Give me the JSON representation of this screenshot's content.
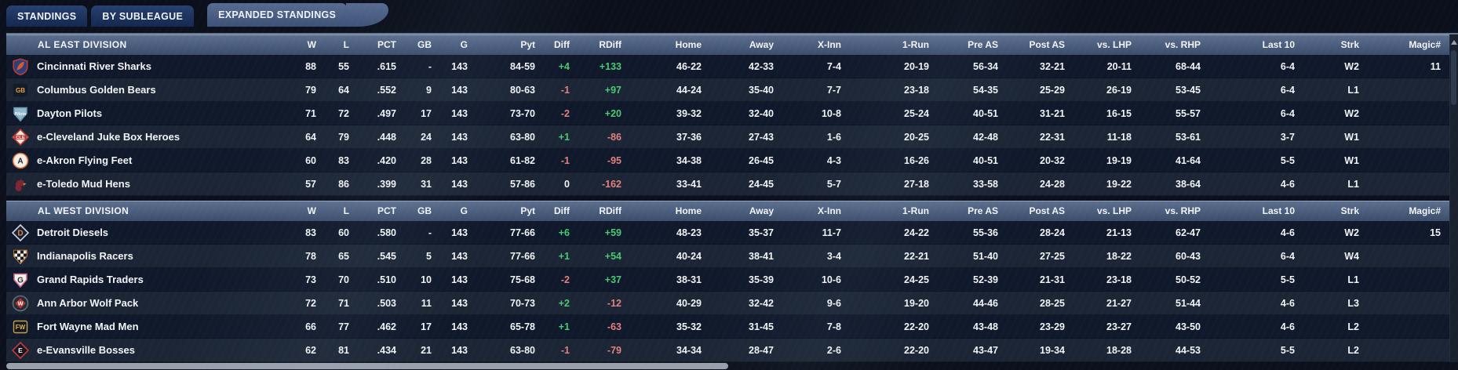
{
  "tabs": [
    {
      "label": "STANDINGS",
      "active": false
    },
    {
      "label": "BY SUBLEAGUE",
      "active": false
    },
    {
      "label": "EXPANDED STANDINGS",
      "active": true
    }
  ],
  "colors": {
    "positive": "#4ac973",
    "negative": "#e2817f",
    "division_header": "#4c5f80",
    "tab_active": "#4a5e84",
    "tab_inactive": "#1d3560",
    "row_dark": "#10192b",
    "row_light": "#1b2535"
  },
  "columns": [
    {
      "key": "w",
      "label": "W"
    },
    {
      "key": "l",
      "label": "L"
    },
    {
      "key": "pct",
      "label": "PCT"
    },
    {
      "key": "gb",
      "label": "GB"
    },
    {
      "key": "g",
      "label": "G"
    },
    {
      "key": "pyt",
      "label": "Pyt"
    },
    {
      "key": "diff",
      "label": "Diff"
    },
    {
      "key": "rdiff",
      "label": "RDiff"
    },
    {
      "key": "home",
      "label": "Home"
    },
    {
      "key": "away",
      "label": "Away"
    },
    {
      "key": "xinn",
      "label": "X-Inn"
    },
    {
      "key": "run1",
      "label": "1-Run"
    },
    {
      "key": "preas",
      "label": "Pre AS"
    },
    {
      "key": "postas",
      "label": "Post AS"
    },
    {
      "key": "vslhp",
      "label": "vs. LHP"
    },
    {
      "key": "vsrhp",
      "label": "vs. RHP"
    },
    {
      "key": "last10",
      "label": "Last 10"
    },
    {
      "key": "strk",
      "label": "Strk"
    },
    {
      "key": "magic",
      "label": "Magic#"
    }
  ],
  "divisions": [
    {
      "name": "AL EAST DIVISION",
      "teams": [
        {
          "name": "Cincinnati River Sharks",
          "logo": {
            "shape": "shield",
            "bg": "#2e3e7d",
            "border": "#b73b35",
            "accent": "#d95a2e"
          },
          "stats": {
            "w": "88",
            "l": "55",
            "pct": ".615",
            "gb": "-",
            "g": "143",
            "pyt": "84-59",
            "diff": "+4",
            "rdiff": "+133",
            "home": "46-22",
            "away": "42-33",
            "xinn": "7-4",
            "run1": "20-19",
            "preas": "56-34",
            "postas": "32-21",
            "vslhp": "20-11",
            "vsrhp": "68-44",
            "last10": "6-4",
            "strk": "W2",
            "magic": "11"
          }
        },
        {
          "name": "Columbus Golden Bears",
          "logo": {
            "shape": "square",
            "bg": "#131a28",
            "border": "#131a28",
            "label": "GB",
            "labelColor": "#e4a13c"
          },
          "stats": {
            "w": "79",
            "l": "64",
            "pct": ".552",
            "gb": "9",
            "g": "143",
            "pyt": "80-63",
            "diff": "-1",
            "rdiff": "+97",
            "home": "44-24",
            "away": "35-40",
            "xinn": "7-7",
            "run1": "23-18",
            "preas": "54-35",
            "postas": "25-29",
            "vslhp": "26-19",
            "vsrhp": "53-45",
            "last10": "6-4",
            "strk": "L1",
            "magic": ""
          }
        },
        {
          "name": "Dayton Pilots",
          "logo": {
            "shape": "plate",
            "bg": "#8fb8cc",
            "border": "#6d98ad",
            "label": "Pilots",
            "labelColor": "#f5f8fa",
            "italic": true
          },
          "stats": {
            "w": "71",
            "l": "72",
            "pct": ".497",
            "gb": "17",
            "g": "143",
            "pyt": "73-70",
            "diff": "-2",
            "rdiff": "+20",
            "home": "39-32",
            "away": "32-40",
            "xinn": "10-8",
            "run1": "25-24",
            "preas": "40-51",
            "postas": "31-21",
            "vslhp": "16-15",
            "vsrhp": "55-57",
            "last10": "6-4",
            "strk": "W2",
            "magic": ""
          }
        },
        {
          "name": "e-Cleveland Juke Box Heroes",
          "logo": {
            "shape": "diamond",
            "bg": "#efe6da",
            "border": "#b5342c",
            "label": "CLE",
            "labelColor": "#ffffff",
            "labelBg": "#b5342c"
          },
          "stats": {
            "w": "64",
            "l": "79",
            "pct": ".448",
            "gb": "24",
            "g": "143",
            "pyt": "63-80",
            "diff": "+1",
            "rdiff": "-86",
            "home": "37-36",
            "away": "27-43",
            "xinn": "1-6",
            "run1": "20-25",
            "preas": "42-48",
            "postas": "22-31",
            "vslhp": "11-18",
            "vsrhp": "53-61",
            "last10": "3-7",
            "strk": "W1",
            "magic": ""
          }
        },
        {
          "name": "e-Akron  Flying Feet",
          "logo": {
            "shape": "circle",
            "bg": "#f4efe6",
            "border": "#cf6b2f",
            "label": "A",
            "labelColor": "#20242b"
          },
          "stats": {
            "w": "60",
            "l": "83",
            "pct": ".420",
            "gb": "28",
            "g": "143",
            "pyt": "61-82",
            "diff": "-1",
            "rdiff": "-95",
            "home": "34-38",
            "away": "26-45",
            "xinn": "4-3",
            "run1": "16-26",
            "preas": "40-51",
            "postas": "20-32",
            "vslhp": "19-19",
            "vsrhp": "41-64",
            "last10": "5-5",
            "strk": "W1",
            "magic": ""
          }
        },
        {
          "name": "e-Toledo  Mud Hens",
          "logo": {
            "shape": "rooster",
            "bg": "#7e2634",
            "border": "#c79b3b"
          },
          "stats": {
            "w": "57",
            "l": "86",
            "pct": ".399",
            "gb": "31",
            "g": "143",
            "pyt": "57-86",
            "diff": "0",
            "rdiff": "-162",
            "home": "33-41",
            "away": "24-45",
            "xinn": "5-7",
            "run1": "27-18",
            "preas": "33-58",
            "postas": "24-28",
            "vslhp": "19-22",
            "vsrhp": "38-64",
            "last10": "4-6",
            "strk": "L1",
            "magic": ""
          }
        }
      ]
    },
    {
      "name": "AL WEST DIVISION",
      "teams": [
        {
          "name": "Detroit Diesels",
          "logo": {
            "shape": "diamond",
            "bg": "#152138",
            "border": "#cdd3dc",
            "label": "D",
            "labelColor": "#e4823c"
          },
          "stats": {
            "w": "83",
            "l": "60",
            "pct": ".580",
            "gb": "-",
            "g": "143",
            "pyt": "77-66",
            "diff": "+6",
            "rdiff": "+59",
            "home": "48-23",
            "away": "35-37",
            "xinn": "11-7",
            "run1": "24-22",
            "preas": "55-36",
            "postas": "28-24",
            "vslhp": "21-13",
            "vsrhp": "62-47",
            "last10": "4-6",
            "strk": "W2",
            "magic": "15"
          }
        },
        {
          "name": "Indianapolis Racers",
          "logo": {
            "shape": "plate",
            "bg": "#f2ece2",
            "border": "#c98e54",
            "checker": "#17191e"
          },
          "stats": {
            "w": "78",
            "l": "65",
            "pct": ".545",
            "gb": "5",
            "g": "143",
            "pyt": "77-66",
            "diff": "+1",
            "rdiff": "+54",
            "home": "40-24",
            "away": "38-41",
            "xinn": "3-4",
            "run1": "22-21",
            "preas": "51-40",
            "postas": "27-25",
            "vslhp": "18-22",
            "vsrhp": "60-43",
            "last10": "6-4",
            "strk": "W4",
            "magic": ""
          }
        },
        {
          "name": "Grand Rapids Traders",
          "logo": {
            "shape": "plate",
            "bg": "#f6f1ea",
            "border": "#c9688c",
            "label": "G",
            "labelColor": "#2a2e35"
          },
          "stats": {
            "w": "73",
            "l": "70",
            "pct": ".510",
            "gb": "10",
            "g": "143",
            "pyt": "75-68",
            "diff": "-2",
            "rdiff": "+37",
            "home": "38-31",
            "away": "35-39",
            "xinn": "10-6",
            "run1": "24-25",
            "preas": "52-39",
            "postas": "21-31",
            "vslhp": "23-18",
            "vsrhp": "50-52",
            "last10": "5-5",
            "strk": "L1",
            "magic": ""
          }
        },
        {
          "name": "Ann Arbor Wolf Pack",
          "logo": {
            "shape": "circle",
            "bg": "#262b33",
            "border": "#646c79",
            "label": "W",
            "labelColor": "#ffffff",
            "labelBg": "#b8342e",
            "labelBgShape": "diamond",
            "labelSize": 7.5
          },
          "stats": {
            "w": "72",
            "l": "71",
            "pct": ".503",
            "gb": "11",
            "g": "143",
            "pyt": "70-73",
            "diff": "+2",
            "rdiff": "-12",
            "home": "40-29",
            "away": "32-42",
            "xinn": "9-6",
            "run1": "19-20",
            "preas": "44-46",
            "postas": "28-25",
            "vslhp": "21-27",
            "vsrhp": "51-44",
            "last10": "4-6",
            "strk": "L3",
            "magic": ""
          }
        },
        {
          "name": "Fort Wayne Mad Men",
          "logo": {
            "shape": "square",
            "bg": "#14171e",
            "border": "#c4a04a",
            "label": "FW",
            "labelColor": "#d9b55a"
          },
          "stats": {
            "w": "66",
            "l": "77",
            "pct": ".462",
            "gb": "17",
            "g": "143",
            "pyt": "65-78",
            "diff": "+1",
            "rdiff": "-63",
            "home": "35-32",
            "away": "31-45",
            "xinn": "7-8",
            "run1": "22-20",
            "preas": "43-48",
            "postas": "23-29",
            "vslhp": "23-27",
            "vsrhp": "43-50",
            "last10": "4-6",
            "strk": "L2",
            "magic": ""
          }
        },
        {
          "name": "e-Evansville Bosses",
          "logo": {
            "shape": "diamond",
            "bg": "#14161c",
            "border": "#c03a40",
            "label": "E",
            "labelColor": "#ffffff",
            "labelSize": 8.5
          },
          "stats": {
            "w": "62",
            "l": "81",
            "pct": ".434",
            "gb": "21",
            "g": "143",
            "pyt": "63-80",
            "diff": "-1",
            "rdiff": "-79",
            "home": "34-34",
            "away": "28-47",
            "xinn": "2-6",
            "run1": "22-20",
            "preas": "43-47",
            "postas": "19-34",
            "vslhp": "18-28",
            "vsrhp": "44-53",
            "last10": "5-5",
            "strk": "L2",
            "magic": ""
          }
        }
      ]
    }
  ]
}
